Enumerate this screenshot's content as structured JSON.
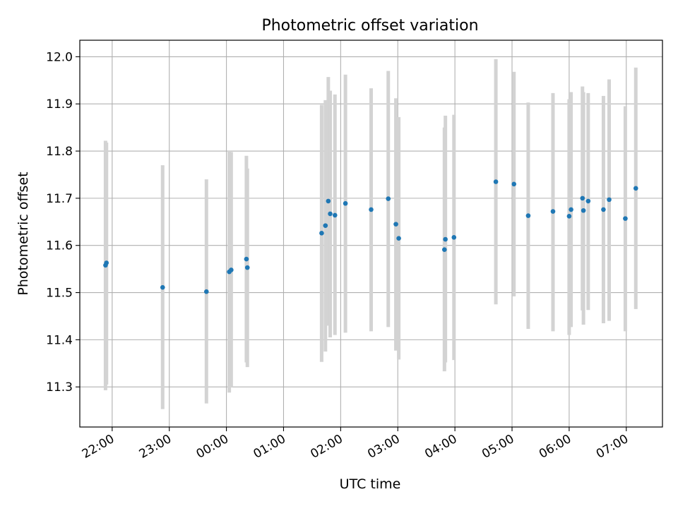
{
  "chart_data": {
    "type": "scatter",
    "title": "Photometric offset variation",
    "xlabel": "UTC time",
    "ylabel": "Photometric offset",
    "x_tick_labels": [
      "22:00",
      "23:00",
      "00:00",
      "01:00",
      "02:00",
      "03:00",
      "04:00",
      "05:00",
      "06:00",
      "07:00"
    ],
    "x_tick_times": [
      "22:00",
      "23:00",
      "00:00",
      "01:00",
      "02:00",
      "03:00",
      "04:00",
      "05:00",
      "06:00",
      "07:00"
    ],
    "y_ticks": [
      11.3,
      11.4,
      11.5,
      11.6,
      11.7,
      11.8,
      11.9,
      12.0
    ],
    "y_tick_labels": [
      "11.3",
      "11.4",
      "11.5",
      "11.6",
      "11.7",
      "11.8",
      "11.9",
      "12.0"
    ],
    "xlim": [
      "21:26",
      "07:38"
    ],
    "ylim": [
      11.215,
      12.035
    ],
    "grid": true,
    "marker_color": "#1f77b4",
    "errorbar_color": "#d3d3d3",
    "points": [
      {
        "t": "21:53",
        "y": 11.558,
        "lo": 11.293,
        "hi": 11.822
      },
      {
        "t": "21:54",
        "y": 11.563,
        "lo": 11.305,
        "hi": 11.818
      },
      {
        "t": "22:53",
        "y": 11.511,
        "lo": 11.253,
        "hi": 11.77
      },
      {
        "t": "23:39",
        "y": 11.502,
        "lo": 11.265,
        "hi": 11.74
      },
      {
        "t": "00:03",
        "y": 11.544,
        "lo": 11.288,
        "hi": 11.8
      },
      {
        "t": "00:05",
        "y": 11.548,
        "lo": 11.3,
        "hi": 11.798
      },
      {
        "t": "00:21",
        "y": 11.571,
        "lo": 11.352,
        "hi": 11.79
      },
      {
        "t": "00:22",
        "y": 11.553,
        "lo": 11.342,
        "hi": 11.763
      },
      {
        "t": "01:40",
        "y": 11.626,
        "lo": 11.353,
        "hi": 11.898
      },
      {
        "t": "01:44",
        "y": 11.642,
        "lo": 11.375,
        "hi": 11.908
      },
      {
        "t": "01:47",
        "y": 11.694,
        "lo": 11.43,
        "hi": 11.957
      },
      {
        "t": "01:49",
        "y": 11.667,
        "lo": 11.405,
        "hi": 11.928
      },
      {
        "t": "01:54",
        "y": 11.664,
        "lo": 11.41,
        "hi": 11.92
      },
      {
        "t": "02:05",
        "y": 11.689,
        "lo": 11.415,
        "hi": 11.962
      },
      {
        "t": "02:32",
        "y": 11.676,
        "lo": 11.418,
        "hi": 11.933
      },
      {
        "t": "02:50",
        "y": 11.699,
        "lo": 11.427,
        "hi": 11.97
      },
      {
        "t": "02:58",
        "y": 11.645,
        "lo": 11.377,
        "hi": 11.912
      },
      {
        "t": "03:01",
        "y": 11.615,
        "lo": 11.358,
        "hi": 11.872
      },
      {
        "t": "03:49",
        "y": 11.591,
        "lo": 11.333,
        "hi": 11.85
      },
      {
        "t": "03:50",
        "y": 11.613,
        "lo": 11.352,
        "hi": 11.875
      },
      {
        "t": "03:59",
        "y": 11.617,
        "lo": 11.357,
        "hi": 11.877
      },
      {
        "t": "04:43",
        "y": 11.735,
        "lo": 11.475,
        "hi": 11.995
      },
      {
        "t": "05:02",
        "y": 11.73,
        "lo": 11.492,
        "hi": 11.968
      },
      {
        "t": "05:17",
        "y": 11.663,
        "lo": 11.423,
        "hi": 11.903
      },
      {
        "t": "05:43",
        "y": 11.672,
        "lo": 11.418,
        "hi": 11.923
      },
      {
        "t": "06:00",
        "y": 11.662,
        "lo": 11.41,
        "hi": 11.91
      },
      {
        "t": "06:02",
        "y": 11.676,
        "lo": 11.427,
        "hi": 11.925
      },
      {
        "t": "06:14",
        "y": 11.7,
        "lo": 11.462,
        "hi": 11.937
      },
      {
        "t": "06:15",
        "y": 11.674,
        "lo": 11.432,
        "hi": 11.925
      },
      {
        "t": "06:20",
        "y": 11.694,
        "lo": 11.463,
        "hi": 11.923
      },
      {
        "t": "06:36",
        "y": 11.676,
        "lo": 11.435,
        "hi": 11.917
      },
      {
        "t": "06:42",
        "y": 11.697,
        "lo": 11.44,
        "hi": 11.952
      },
      {
        "t": "06:59",
        "y": 11.657,
        "lo": 11.418,
        "hi": 11.895
      },
      {
        "t": "07:10",
        "y": 11.721,
        "lo": 11.465,
        "hi": 11.977
      }
    ]
  }
}
